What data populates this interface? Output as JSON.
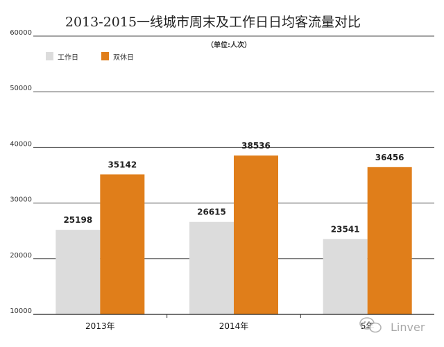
{
  "chart_data": {
    "type": "bar",
    "title": "2013-2015一线城市周末及工作日日均客流量对比",
    "subtitle": "（单位:人次）",
    "categories": [
      "2013年",
      "2014年",
      "5年"
    ],
    "series": [
      {
        "name": "工作日",
        "color": "#dcdcdc",
        "values": [
          25198,
          26615,
          23541
        ]
      },
      {
        "name": "双休日",
        "color": "#e07e1a",
        "values": [
          35142,
          38536,
          36456
        ]
      }
    ],
    "ylim": [
      10000,
      60000
    ],
    "yticks": [
      "10000",
      "20000",
      "30000",
      "40000",
      "50000",
      "60000"
    ],
    "grid": true,
    "legend_position": "top-left"
  },
  "watermark": {
    "text": "Linver",
    "icon": "wechat-icon"
  }
}
